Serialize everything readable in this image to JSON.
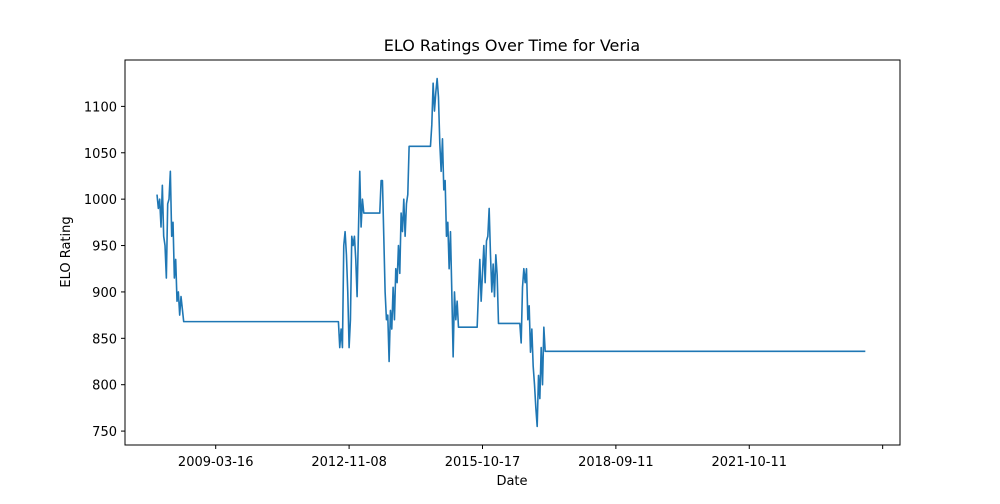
{
  "chart_data": {
    "type": "line",
    "title": "ELO Ratings Over Time for Veria",
    "x_label": "Date",
    "y_label": "ELO Rating",
    "x": [
      0,
      1,
      2,
      3,
      4,
      5,
      6,
      7,
      8,
      9,
      10,
      11,
      12,
      13,
      14,
      15,
      16,
      17,
      18,
      20,
      136,
      137,
      138,
      139,
      140,
      141,
      142,
      143,
      144,
      145,
      146,
      147,
      148,
      149,
      150,
      151,
      152,
      153,
      154,
      155,
      167,
      168,
      169,
      170,
      171,
      172,
      173,
      174,
      175,
      176,
      177,
      178,
      179,
      180,
      181,
      182,
      183,
      184,
      185,
      186,
      187,
      188,
      189,
      205,
      206,
      207,
      208,
      209,
      210,
      211,
      212,
      213,
      214,
      215,
      216,
      217,
      218,
      219,
      220,
      221,
      222,
      223,
      224,
      225,
      226,
      240,
      241,
      242,
      243,
      244,
      245,
      246,
      247,
      248,
      249,
      250,
      251,
      252,
      253,
      254,
      255,
      256,
      272,
      273,
      274,
      275,
      276,
      277,
      278,
      279,
      280,
      281,
      282,
      283,
      284,
      285,
      286,
      287,
      288,
      289,
      290,
      291,
      531
    ],
    "series": [
      {
        "name": "Veria",
        "color": "#1f77b4",
        "values": [
          1005,
          990,
          1000,
          970,
          1015,
          960,
          950,
          915,
          995,
          1000,
          1030,
          960,
          975,
          915,
          935,
          890,
          900,
          875,
          895,
          868,
          868,
          840,
          860,
          840,
          950,
          965,
          940,
          900,
          840,
          870,
          960,
          950,
          960,
          935,
          895,
          965,
          1030,
          970,
          1000,
          985,
          985,
          1020,
          1020,
          960,
          900,
          870,
          875,
          825,
          880,
          860,
          905,
          870,
          925,
          910,
          950,
          920,
          985,
          965,
          1000,
          960,
          995,
          1005,
          1057,
          1057,
          1080,
          1125,
          1095,
          1115,
          1130,
          1110,
          1060,
          1030,
          1065,
          1010,
          1020,
          960,
          975,
          925,
          965,
          900,
          830,
          900,
          870,
          890,
          862,
          862,
          900,
          935,
          890,
          920,
          950,
          910,
          955,
          960,
          990,
          940,
          900,
          930,
          895,
          940,
          918,
          866,
          866,
          845,
          905,
          925,
          910,
          925,
          870,
          885,
          835,
          860,
          820,
          800,
          775,
          755,
          810,
          785,
          840,
          800,
          862,
          836,
          836
        ]
      }
    ],
    "xlim": [
      -24,
      557
    ],
    "xticks": [
      {
        "value": 44,
        "label": "2009-03-16"
      },
      {
        "value": 144,
        "label": "2012-11-08"
      },
      {
        "value": 244,
        "label": "2015-10-17"
      },
      {
        "value": 344,
        "label": "2018-09-11"
      },
      {
        "value": 444,
        "label": "2021-10-11"
      },
      {
        "value": 544,
        "label": null
      }
    ],
    "ylim": [
      735,
      1150
    ],
    "yticks": [
      750,
      800,
      850,
      900,
      950,
      1000,
      1050,
      1100
    ]
  }
}
